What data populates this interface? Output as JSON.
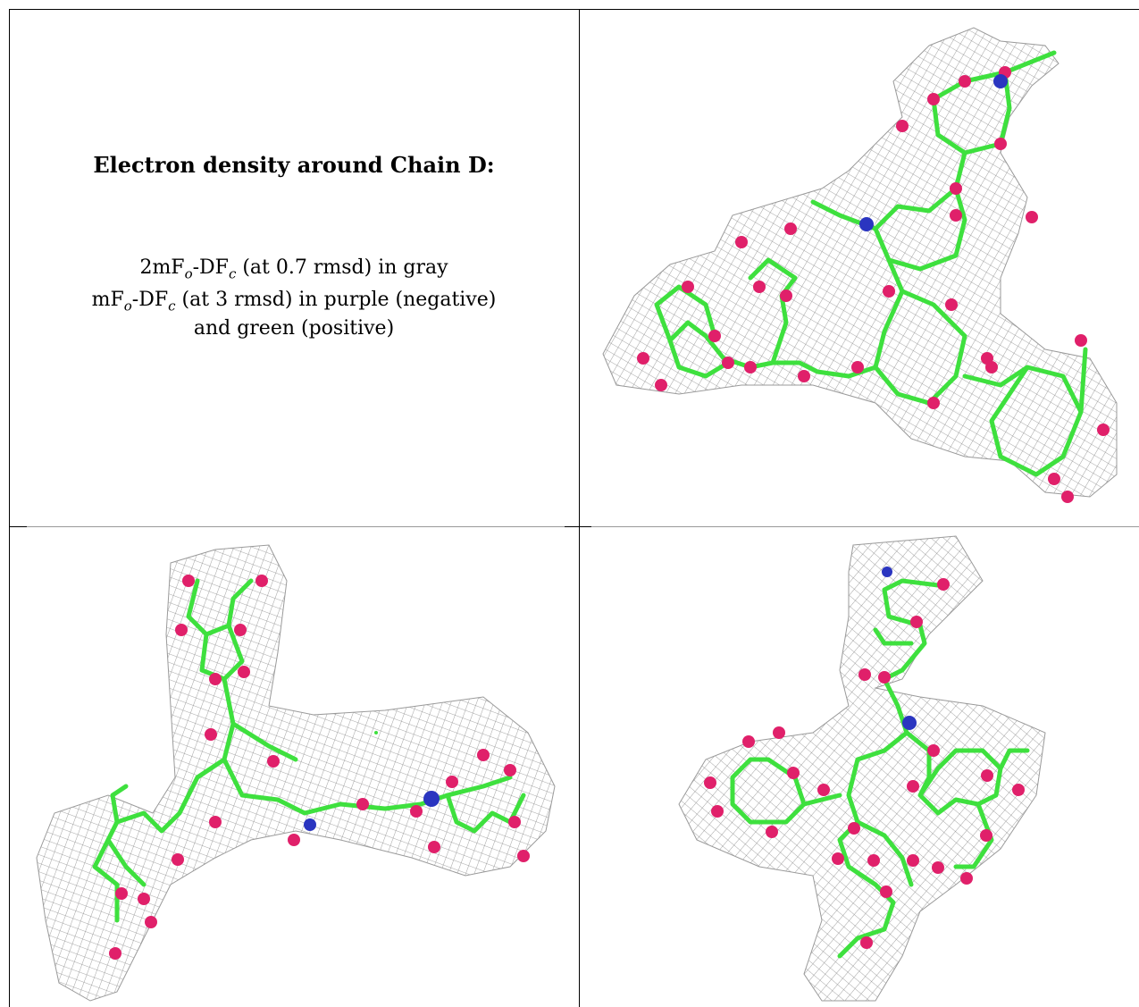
{
  "legend": {
    "title": "Electron density around Chain D:",
    "line1": "2mF",
    "line1_sub1": "o",
    "line1_mid": "-DF",
    "line1_sub2": "c",
    "line1_tail": " (at 0.7 rmsd) in gray",
    "line2": "mF",
    "line2_sub1": "o",
    "line2_mid": "-DF",
    "line2_sub2": "c",
    "line2_tail": " (at 3 rmsd) in purple (negative)",
    "line3": "and green (positive)"
  },
  "colors": {
    "mesh": "#8a8a8a",
    "carbon": "#3ee03e",
    "oxygen": "#e0206a",
    "nitrogen": "#2a35c0",
    "border": "#000000"
  }
}
